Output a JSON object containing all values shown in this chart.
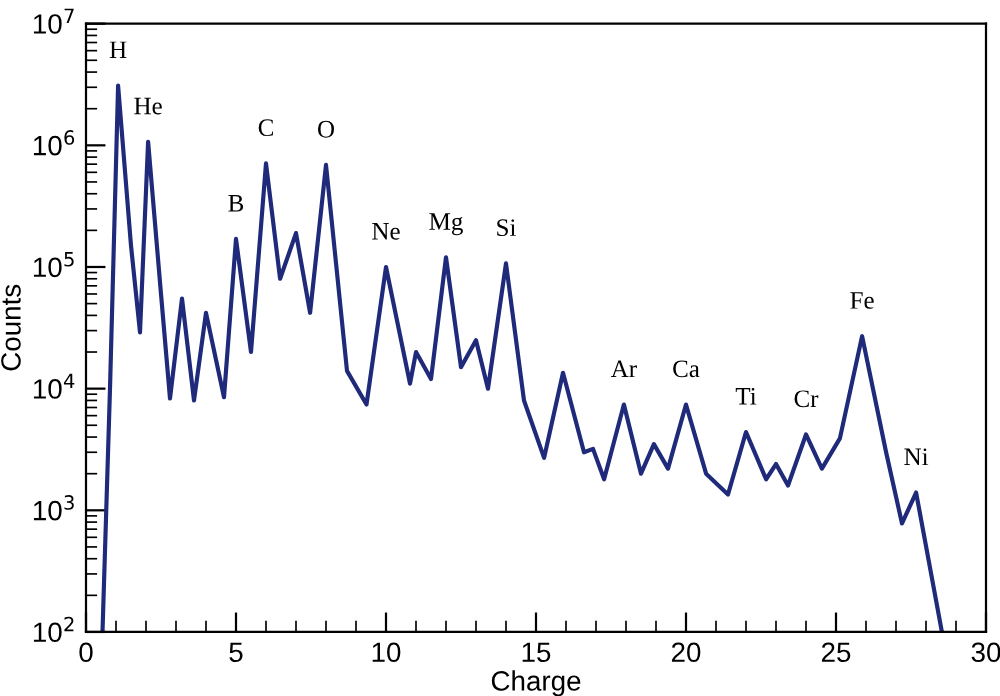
{
  "chart_data": {
    "type": "line",
    "xlabel": "Charge",
    "ylabel": "Counts",
    "log": "y",
    "xlim": [
      0,
      30
    ],
    "ylim": [
      100,
      10000000
    ],
    "xticks": [
      0,
      {
        "value": 1,
        "label": null
      },
      {
        "value": 2,
        "label": null
      },
      {
        "value": 3,
        "label": null
      },
      {
        "value": 4,
        "label": null
      },
      5,
      {
        "value": 6,
        "label": null
      },
      {
        "value": 7,
        "label": null
      },
      {
        "value": 8,
        "label": null
      },
      {
        "value": 9,
        "label": null
      },
      10,
      {
        "value": 11,
        "label": null
      },
      {
        "value": 12,
        "label": null
      },
      {
        "value": 13,
        "label": null
      },
      {
        "value": 14,
        "label": null
      },
      15,
      {
        "value": 16,
        "label": null
      },
      {
        "value": 17,
        "label": null
      },
      {
        "value": 18,
        "label": null
      },
      {
        "value": 19,
        "label": null
      },
      20,
      {
        "value": 21,
        "label": null
      },
      {
        "value": 22,
        "label": null
      },
      {
        "value": 23,
        "label": null
      },
      {
        "value": 24,
        "label": null
      },
      25,
      {
        "value": 26,
        "label": null
      },
      {
        "value": 27,
        "label": null
      },
      {
        "value": 28,
        "label": null
      },
      {
        "value": 29,
        "label": null
      },
      30
    ],
    "yticks": [
      {
        "value": 100,
        "label": "10$^{2}$"
      },
      {
        "value": 1000,
        "label": "10$^{3}$"
      },
      {
        "value": 10000,
        "label": "10$^{4}$"
      },
      {
        "value": 100000,
        "label": "10$^{5}$"
      },
      {
        "value": 1000000,
        "label": "10$^{6}$"
      },
      {
        "value": 10000000,
        "label": "10$^{7}$"
      }
    ],
    "grid": false,
    "marker": "none",
    "line_style": "solid",
    "series": [
      {
        "color": "#1f2a7a",
        "x": [
          0.55,
          0.8,
          1.07,
          1.5,
          1.8,
          2.07,
          2.5,
          2.8,
          3.2,
          3.6,
          4.0,
          4.6,
          5.0,
          5.5,
          6.0,
          6.47,
          7.0,
          7.47,
          8.0,
          8.7,
          9.35,
          10.0,
          10.8,
          11.0,
          11.5,
          12.0,
          12.5,
          13.0,
          13.4,
          14.0,
          14.6,
          15.27,
          15.9,
          16.6,
          16.9,
          17.27,
          17.93,
          18.5,
          18.93,
          19.4,
          20.0,
          20.67,
          21.4,
          22.0,
          22.67,
          23.0,
          23.4,
          24.0,
          24.53,
          25.13,
          25.87,
          26.67,
          27.2,
          27.67,
          28.53
        ],
        "values": [
          100,
          10000,
          3100000,
          150000,
          29000,
          1070000,
          60000,
          8300,
          55000,
          8000,
          42000,
          8500,
          170000,
          20000,
          710000,
          80000,
          190000,
          42000,
          690000,
          14000,
          7400,
          100000,
          11000,
          20000,
          12000,
          120000,
          15000,
          25000,
          10000,
          107000,
          8000,
          2700,
          13500,
          3000,
          3200,
          1800,
          7400,
          2000,
          3500,
          2200,
          7400,
          2000,
          1350,
          4400,
          1800,
          2400,
          1600,
          4200,
          2200,
          3900,
          27000,
          3000,
          780,
          1400,
          100
        ]
      }
    ],
    "annotations": [
      {
        "text": "H",
        "x": 1.07,
        "y": 3100000
      },
      {
        "text": "He",
        "x": 2.07,
        "y": 1070000
      },
      {
        "text": "B",
        "x": 5.0,
        "y": 170000
      },
      {
        "text": "C",
        "x": 6.0,
        "y": 710000
      },
      {
        "text": "O",
        "x": 8.0,
        "y": 690000
      },
      {
        "text": "Ne",
        "x": 10.0,
        "y": 100000
      },
      {
        "text": "Mg",
        "x": 12.0,
        "y": 120000
      },
      {
        "text": "Si",
        "x": 14.0,
        "y": 107000
      },
      {
        "text": "Ar",
        "x": 17.93,
        "y": 7400
      },
      {
        "text": "Ca",
        "x": 20.0,
        "y": 7400
      },
      {
        "text": "Ti",
        "x": 22.0,
        "y": 4400
      },
      {
        "text": "Cr",
        "x": 24.0,
        "y": 4200
      },
      {
        "text": "Fe",
        "x": 25.87,
        "y": 27000
      },
      {
        "text": "Ni",
        "x": 27.67,
        "y": 1400
      }
    ]
  }
}
